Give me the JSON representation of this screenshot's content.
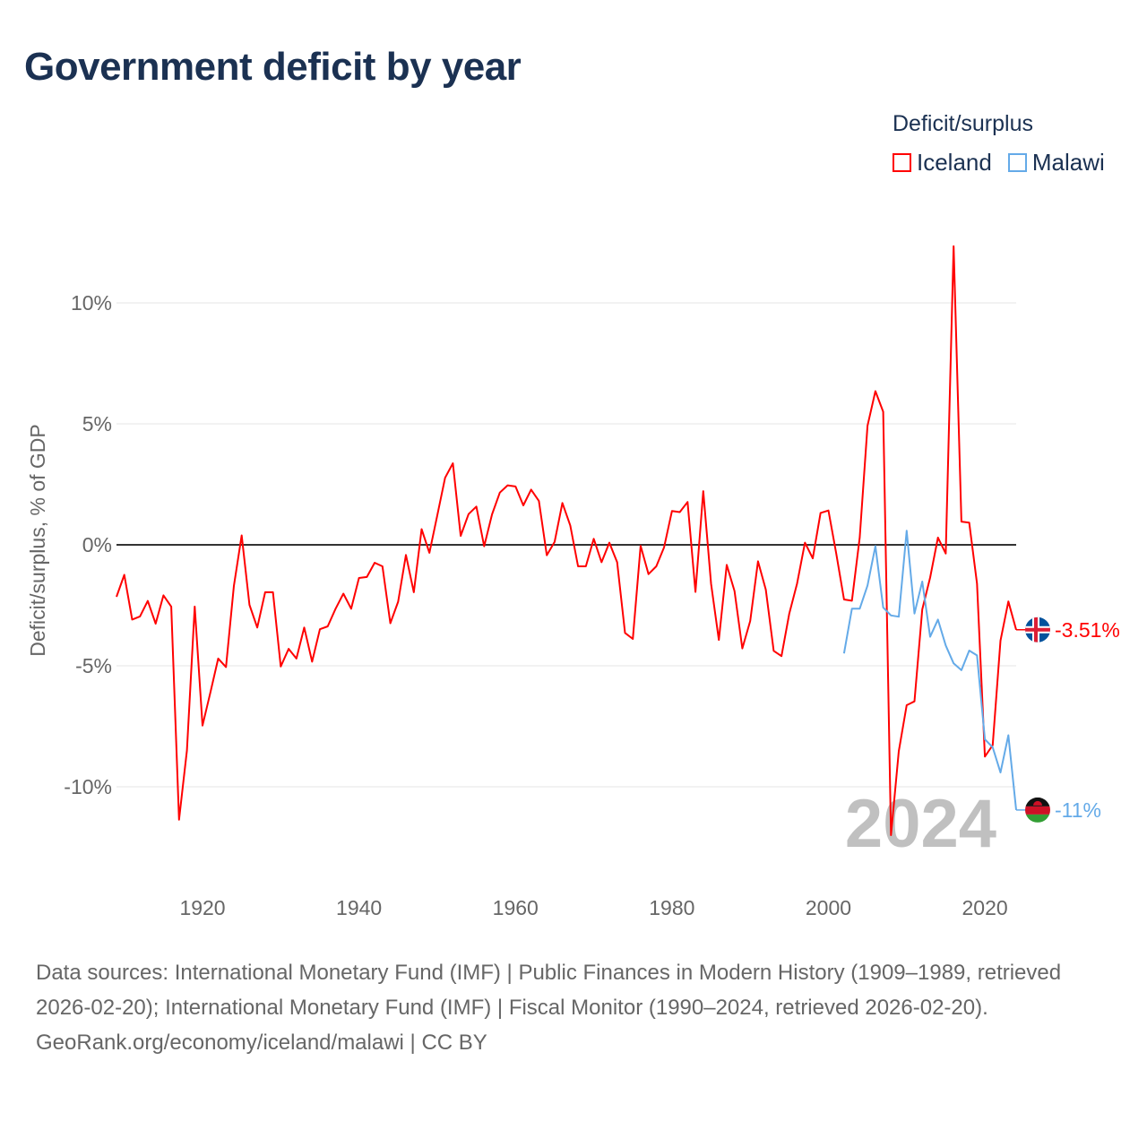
{
  "title": "Government deficit by year",
  "legend": {
    "title": "Deficit/surplus",
    "items": [
      {
        "label": "Iceland",
        "color": "#ff0000"
      },
      {
        "label": "Malawi",
        "color": "#64aae8"
      }
    ]
  },
  "year_watermark": "2024",
  "footer": {
    "sources": "Data sources: International Monetary Fund (IMF) | Public Finances in Modern History (1909–1989, retrieved 2026-02-20); International Monetary Fund (IMF) | Fiscal Monitor (1990–2024, retrieved 2026-02-20).",
    "credit": "GeoRank.org/economy/iceland/malawi | CC BY"
  },
  "chart_data": {
    "type": "line",
    "title": "Government deficit by year",
    "xlabel": "",
    "ylabel": "Deficit/surplus, % of GDP",
    "xlim": [
      1909,
      2024
    ],
    "ylim": [
      -14,
      13.5
    ],
    "x_ticks": [
      1920,
      1940,
      1960,
      1980,
      2000,
      2020
    ],
    "y_ticks": [
      {
        "value": 10,
        "label": "10%"
      },
      {
        "value": 5,
        "label": "5%"
      },
      {
        "value": 0,
        "label": "0%"
      },
      {
        "value": -5,
        "label": "-5%"
      },
      {
        "value": -10,
        "label": "-10%"
      }
    ],
    "grid": true,
    "legend_position": "top-right",
    "series": [
      {
        "name": "Iceland",
        "color": "#ff0000",
        "end_label": "-3.51%",
        "flag": "iceland-flag",
        "start_year": 1909,
        "values": [
          -2.15,
          -1.24,
          -3.09,
          -2.96,
          -2.32,
          -3.26,
          -2.09,
          -2.55,
          -11.36,
          -8.5,
          -2.55,
          -7.47,
          -6.1,
          -4.7,
          -5.05,
          -1.7,
          0.39,
          -2.48,
          -3.42,
          -1.96,
          -1.96,
          -5.03,
          -4.3,
          -4.7,
          -3.42,
          -4.83,
          -3.49,
          -3.37,
          -2.64,
          -2.02,
          -2.64,
          -1.37,
          -1.33,
          -0.74,
          -0.89,
          -3.24,
          -2.35,
          -0.42,
          -1.96,
          0.65,
          -0.33,
          1.2,
          2.77,
          3.37,
          0.37,
          1.27,
          1.58,
          -0.06,
          1.26,
          2.16,
          2.46,
          2.41,
          1.63,
          2.28,
          1.81,
          -0.43,
          0.12,
          1.73,
          0.8,
          -0.89,
          -0.89,
          0.25,
          -0.72,
          0.09,
          -0.72,
          -3.64,
          -3.89,
          -0.04,
          -1.21,
          -0.89,
          -0.1,
          1.4,
          1.35,
          1.77,
          -1.95,
          2.22,
          -1.6,
          -3.93,
          -0.83,
          -1.91,
          -4.28,
          -3.15,
          -0.68,
          -1.85,
          -4.38,
          -4.6,
          -2.84,
          -1.6,
          0.09,
          -0.56,
          1.32,
          1.42,
          -0.36,
          -2.26,
          -2.31,
          0.3,
          4.92,
          6.35,
          5.5,
          -12.0,
          -8.53,
          -6.63,
          -6.47,
          -2.67,
          -1.35,
          0.3,
          -0.36,
          12.34,
          0.96,
          0.92,
          -1.6,
          -8.75,
          -8.28,
          -3.96,
          -2.34,
          -3.51
        ]
      },
      {
        "name": "Malawi",
        "color": "#64aae8",
        "end_label": "-11%",
        "flag": "malawi-flag",
        "start_year": 2002,
        "values": [
          -4.49,
          -2.64,
          -2.64,
          -1.68,
          -0.05,
          -2.59,
          -2.92,
          -2.97,
          0.58,
          -2.84,
          -1.52,
          -3.8,
          -3.09,
          -4.16,
          -4.9,
          -5.18,
          -4.37,
          -4.57,
          -8.04,
          -8.37,
          -9.41,
          -7.87,
          -10.96
        ]
      }
    ]
  }
}
